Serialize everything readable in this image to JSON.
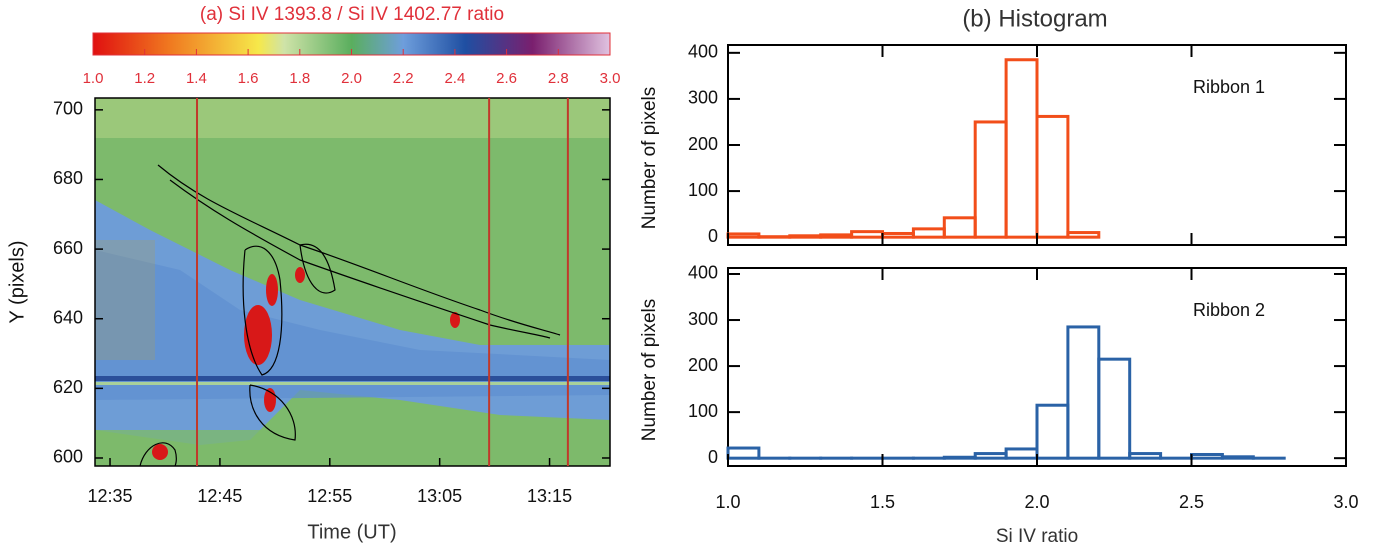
{
  "chart_data": [
    {
      "type": "image",
      "title": "(a) Si IV 1393.8 / Si IV 1402.77 ratio",
      "title_color": "#e0303a",
      "colorbar": {
        "lim": [
          1.0,
          3.0
        ],
        "ticks": [
          {
            "value": 1.0,
            "label": "1.0"
          },
          {
            "value": 1.2,
            "label": "1.2"
          },
          {
            "value": 1.4,
            "label": "1.4"
          },
          {
            "value": 1.6,
            "label": "1.6"
          },
          {
            "value": 1.8,
            "label": "1.8"
          },
          {
            "value": 2.0,
            "label": "2.0"
          },
          {
            "value": 2.2,
            "label": "2.2"
          },
          {
            "value": 2.4,
            "label": "2.4"
          },
          {
            "value": 2.6,
            "label": "2.6"
          },
          {
            "value": 2.8,
            "label": "2.8"
          },
          {
            "value": 3.0,
            "label": "3.0"
          }
        ]
      },
      "xlabel": "Time (UT)",
      "ylabel": "Y (pixels)",
      "xlim": [
        "12:33:38",
        "13:20:30"
      ],
      "xticks": [
        "12:35",
        "12:45",
        "12:55",
        "13:05",
        "13:15"
      ],
      "ylim": [
        597.7,
        703.4
      ],
      "yticks": [
        600,
        620,
        640,
        660,
        680,
        700
      ],
      "markers": {
        "x": [
          "12:42:55",
          "13:09:30",
          "13:16:40"
        ],
        "color": "#c0392b"
      }
    },
    {
      "type": "histogram",
      "title": "(b) Histogram",
      "ylabel": "Number of pixels",
      "bins": [
        1.0,
        1.1,
        1.2,
        1.3,
        1.4,
        1.5,
        1.6,
        1.7,
        1.8,
        1.9,
        2.0,
        2.1,
        2.2
      ],
      "series": [
        {
          "name": "Ribbon 1",
          "color": "#f24e1a",
          "values": [
            7,
            1,
            3,
            5,
            12,
            8,
            18,
            42,
            250,
            385,
            262,
            10
          ]
        }
      ],
      "xlim": [
        1.0,
        3.0
      ],
      "ylim": [
        -17,
        417
      ],
      "yticks": [
        0,
        100,
        200,
        300,
        400
      ]
    },
    {
      "type": "histogram",
      "ylabel": "Number of pixels",
      "xlabel": "Si IV ratio",
      "bins": [
        1.0,
        1.1,
        1.2,
        1.3,
        1.4,
        1.5,
        1.6,
        1.7,
        1.8,
        1.9,
        2.0,
        2.1,
        2.2,
        2.3,
        2.4,
        2.5,
        2.6,
        2.7,
        2.8
      ],
      "series": [
        {
          "name": "Ribbon 2",
          "color": "#2a62a6",
          "values": [
            22,
            0,
            0,
            0,
            0,
            0,
            0,
            2,
            10,
            20,
            115,
            285,
            215,
            10,
            0,
            8,
            3,
            0
          ]
        }
      ],
      "xlim": [
        1.0,
        3.0
      ],
      "ylim": [
        -17,
        413
      ],
      "yticks": [
        0,
        100,
        200,
        300,
        400
      ],
      "xticks": [
        {
          "value": 1.0,
          "label": "1.0"
        },
        {
          "value": 1.5,
          "label": "1.5"
        },
        {
          "value": 2.0,
          "label": "2.0"
        },
        {
          "value": 2.5,
          "label": "2.5"
        },
        {
          "value": 3.0,
          "label": "3.0"
        }
      ]
    }
  ]
}
